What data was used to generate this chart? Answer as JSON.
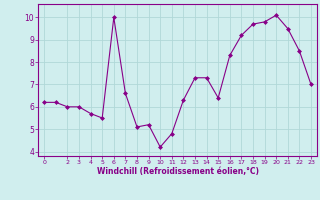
{
  "x": [
    0,
    1,
    2,
    3,
    4,
    5,
    6,
    7,
    8,
    9,
    10,
    11,
    12,
    13,
    14,
    15,
    16,
    17,
    18,
    19,
    20,
    21,
    22,
    23
  ],
  "y": [
    6.2,
    6.2,
    6.0,
    6.0,
    5.7,
    5.5,
    10.0,
    6.6,
    5.1,
    5.2,
    4.2,
    4.8,
    6.3,
    7.3,
    7.3,
    6.4,
    8.3,
    9.2,
    9.7,
    9.8,
    10.1,
    9.5,
    8.5,
    7.0
  ],
  "line_color": "#880088",
  "marker": "D",
  "marker_size": 2,
  "bg_color": "#d0eeee",
  "grid_color": "#b0d8d8",
  "xlabel": "Windchill (Refroidissement éolien,°C)",
  "xlabel_color": "#880088",
  "tick_color": "#880088",
  "ylim": [
    3.8,
    10.6
  ],
  "xlim": [
    -0.5,
    23.5
  ],
  "yticks": [
    4,
    5,
    6,
    7,
    8,
    9,
    10
  ],
  "xticks": [
    0,
    2,
    3,
    4,
    5,
    6,
    7,
    8,
    9,
    10,
    11,
    12,
    13,
    14,
    15,
    16,
    17,
    18,
    19,
    20,
    21,
    22,
    23
  ]
}
